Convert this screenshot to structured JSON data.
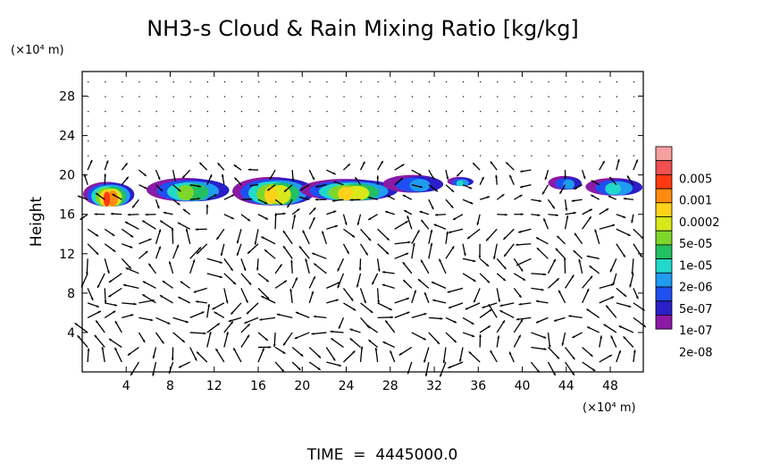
{
  "chart_data": {
    "type": "heatmap",
    "title": "NH3-s Cloud & Rain Mixing Ratio [kg/kg]",
    "ylabel": "Height",
    "y_unit": "(×10⁴ m)",
    "x_unit": "(×10⁴ m)",
    "footer": "TIME  =  4445000.0",
    "xlim": [
      0,
      51
    ],
    "ylim": [
      0,
      30.5
    ],
    "x_ticks": [
      4,
      8,
      12,
      16,
      20,
      24,
      28,
      32,
      36,
      40,
      44,
      48
    ],
    "y_ticks": [
      4,
      8,
      12,
      16,
      20,
      24,
      28
    ],
    "x_tick_labels": [
      "4",
      "8",
      "12",
      "16",
      "20",
      "24",
      "28",
      "32",
      "36",
      "40",
      "44",
      "48"
    ],
    "y_tick_labels": [
      "4",
      "8",
      "12",
      "16",
      "20",
      "24",
      "28"
    ],
    "grid": false,
    "legend_position": "right",
    "colorbar": {
      "labels": [
        "0.005",
        "0.001",
        "0.0002",
        "5e-05",
        "1e-05",
        "2e-06",
        "5e-07",
        "1e-07",
        "2e-08"
      ],
      "colors": [
        "#8b1aa6",
        "#2a1fc8",
        "#1f4ff0",
        "#1f9cf0",
        "#22d8c8",
        "#22c060",
        "#7fd62a",
        "#d8e81a",
        "#ffd21a",
        "#ff8c10",
        "#ff3a10",
        "#f05050",
        "#f6a0a0"
      ]
    },
    "cloud_clusters": [
      {
        "x": [
          0.3,
          4.6
        ],
        "y": [
          16.8,
          19.3
        ],
        "peak": 10
      },
      {
        "x": [
          6.2,
          13.3
        ],
        "y": [
          17.3,
          19.7
        ],
        "peak": 6
      },
      {
        "x": [
          14.0,
          21.0
        ],
        "y": [
          16.9,
          19.8
        ],
        "peak": 8
      },
      {
        "x": [
          20.2,
          28.5
        ],
        "y": [
          17.4,
          19.6
        ],
        "peak": 8
      },
      {
        "x": [
          27.6,
          33.0
        ],
        "y": [
          18.2,
          20.0
        ],
        "peak": 3
      },
      {
        "x": [
          33.3,
          35.6
        ],
        "y": [
          18.9,
          19.8
        ],
        "peak": 4
      },
      {
        "x": [
          42.5,
          45.5
        ],
        "y": [
          18.5,
          19.9
        ],
        "peak": 3
      },
      {
        "x": [
          46.0,
          51.0
        ],
        "y": [
          17.9,
          19.7
        ],
        "peak": 4
      }
    ]
  }
}
